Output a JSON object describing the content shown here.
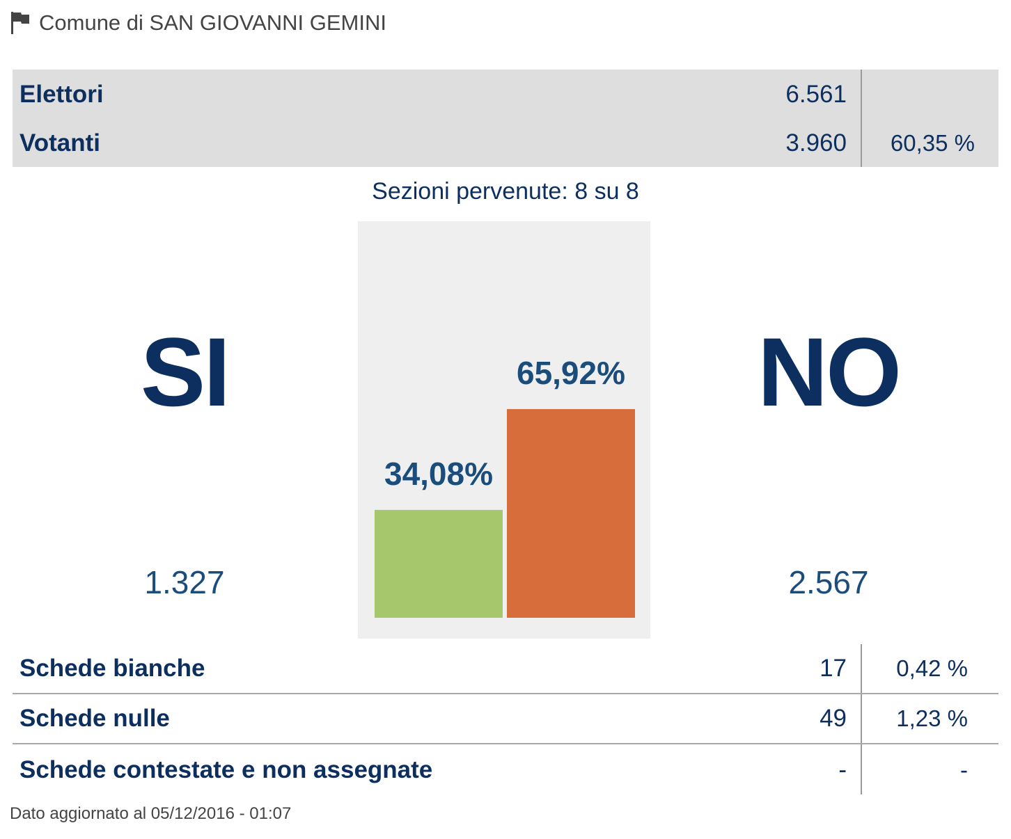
{
  "header": {
    "title": "Comune di SAN GIOVANNI GEMINI",
    "icon": "flag-icon"
  },
  "summary": {
    "elettori_label": "Elettori",
    "elettori_value": "6.561",
    "votanti_label": "Votanti",
    "votanti_value": "3.960",
    "votanti_pct": "60,35 %"
  },
  "sezioni": "Sezioni pervenute: 8 su 8",
  "results": {
    "si_label": "SI",
    "si_votes": "1.327",
    "no_label": "NO",
    "no_votes": "2.567"
  },
  "chart_data": {
    "type": "bar",
    "categories": [
      "SI",
      "NO"
    ],
    "values": [
      34.08,
      65.92
    ],
    "value_labels": [
      "34,08%",
      "65,92%"
    ],
    "colors": [
      "#a6c76c",
      "#d66d3a"
    ],
    "ylim": [
      0,
      100
    ]
  },
  "details": [
    {
      "label": "Schede bianche",
      "value": "17",
      "pct": "0,42 %"
    },
    {
      "label": "Schede nulle",
      "value": "49",
      "pct": "1,23 %"
    },
    {
      "label": "Schede contestate e non assegnate",
      "value": "-",
      "pct": "-"
    }
  ],
  "footer": "Dato aggiornato al 05/12/2016 - 01:07",
  "colors": {
    "navy": "#0c2f5f",
    "panel": "#dedede",
    "chart_bg": "#efefef"
  }
}
